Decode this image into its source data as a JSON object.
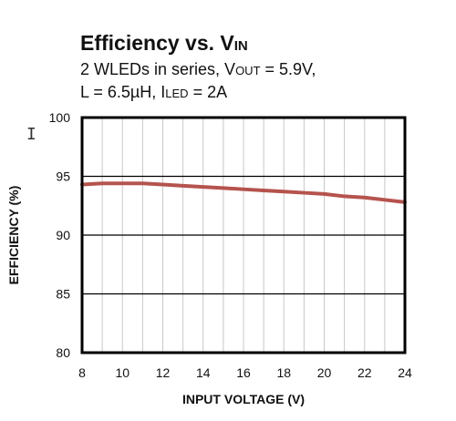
{
  "chart_data": {
    "type": "line",
    "title": {
      "main": "Efficiency vs. V",
      "sub": "IN"
    },
    "subtitle_lines": [
      [
        {
          "t": "2 WLEDs in series, V"
        },
        {
          "t": "OUT",
          "small": true
        },
        {
          "t": " = 5.9V,"
        }
      ],
      [
        {
          "t": "L = 6.5µH, I"
        },
        {
          "t": "LED",
          "small": true
        },
        {
          "t": " = 2A"
        }
      ]
    ],
    "xlabel": "INPUT VOLTAGE (V)",
    "ylabel": "EFFICIENCY (%)",
    "xlim": [
      8,
      24
    ],
    "ylim": [
      80,
      100
    ],
    "x_ticks": [
      8,
      10,
      12,
      14,
      16,
      18,
      20,
      22,
      24
    ],
    "y_ticks": [
      80,
      85,
      90,
      95,
      100
    ],
    "grid": true,
    "series": [
      {
        "color": "#B5534D",
        "x": [
          8,
          9,
          10,
          11,
          12,
          13,
          14,
          15,
          16,
          17,
          18,
          19,
          20,
          21,
          22,
          23,
          24
        ],
        "y": [
          94.3,
          94.4,
          94.4,
          94.4,
          94.3,
          94.2,
          94.1,
          94.0,
          93.9,
          93.8,
          93.7,
          93.6,
          93.5,
          93.3,
          93.2,
          93.0,
          92.8
        ]
      }
    ]
  },
  "cursor_glyph": "I"
}
